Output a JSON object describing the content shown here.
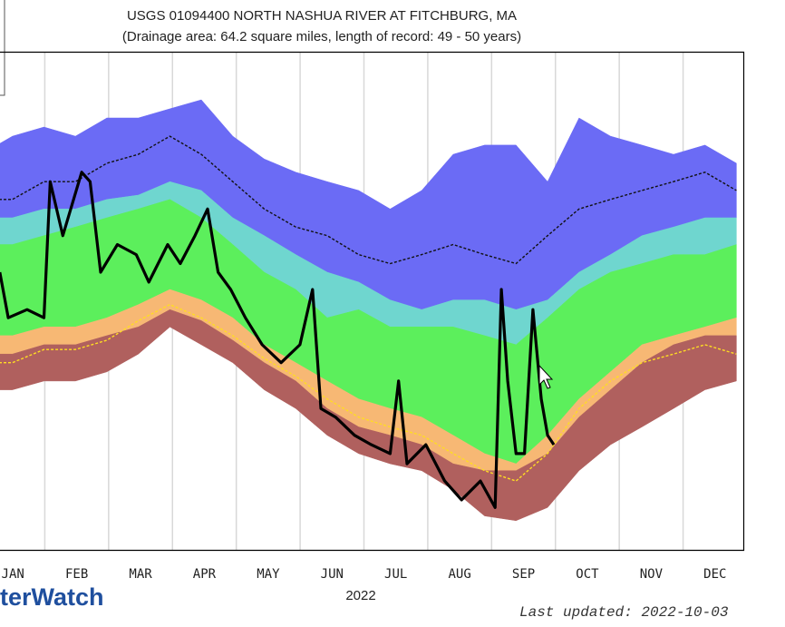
{
  "chart_data": {
    "type": "line",
    "title": "USGS 01094400 NORTH NASHUA RIVER AT FITCHBURG, MA",
    "subtitle": "(Drainage area: 64.2 square miles, length of record: 49 - 50 years)",
    "categories": [
      "JAN",
      "FEB",
      "MAR",
      "APR",
      "MAY",
      "JUN",
      "JUL",
      "AUG",
      "SEP",
      "OCT",
      "NOV",
      "DEC"
    ],
    "x_label": "2022",
    "logo": "terWatch",
    "updated": "Last updated: 2022-10-03",
    "xlim": [
      0,
      365
    ],
    "ylim": [
      1,
      1000
    ],
    "ylog": true,
    "grid": true,
    "x": [
      0,
      15,
      30,
      45,
      60,
      75,
      90,
      105,
      120,
      135,
      150,
      165,
      180,
      195,
      210,
      225,
      240,
      255,
      270,
      285,
      300,
      315,
      330,
      345,
      360
    ],
    "series": [
      {
        "fill": "#6b6bf5",
        "values": [
          241,
          310,
          352,
          310,
          399,
          399,
          453,
          513,
          310,
          226,
          188,
          165,
          146,
          113,
          146,
          241,
          274,
          274,
          165,
          399,
          310,
          274,
          241,
          274,
          213
        ]
      },
      {
        "fill": "#6fd6cf",
        "values": [
          100,
          100,
          113,
          113,
          129,
          137,
          165,
          146,
          100,
          78,
          60,
          47,
          41,
          32,
          28,
          32,
          32,
          28,
          32,
          47,
          60,
          78,
          88,
          100,
          100
        ]
      },
      {
        "fill": "#5cef5c",
        "values": [
          69,
          69,
          78,
          88,
          100,
          113,
          129,
          100,
          69,
          47,
          37,
          25,
          28,
          22,
          22,
          22,
          19.5,
          17.2,
          25,
          37,
          47,
          53,
          60,
          60,
          69
        ]
      },
      {
        "fill": "#f7b874",
        "values": [
          19.5,
          19.5,
          22,
          22,
          25,
          30,
          37,
          32,
          25,
          17.2,
          13.4,
          10.4,
          8.1,
          7.1,
          6.3,
          4.9,
          3.8,
          3.3,
          4.9,
          8.1,
          11.8,
          17.2,
          19.5,
          22,
          25
        ]
      },
      {
        "fill": "#b0605e",
        "values": [
          15.1,
          15.1,
          17.2,
          17.2,
          19.5,
          22,
          28,
          24,
          18.3,
          13.4,
          10.4,
          7.1,
          5.5,
          4.9,
          4.3,
          3.3,
          3.0,
          3.0,
          3.8,
          6.3,
          9.2,
          13.4,
          17.2,
          19.5,
          19.5
        ]
      },
      {
        "values": [
          9.2,
          9.2,
          10.4,
          10.4,
          11.8,
          15.1,
          22,
          17.2,
          13.4,
          9.2,
          7.1,
          4.9,
          3.8,
          3.3,
          3.0,
          2.3,
          1.6,
          1.5,
          1.8,
          3.0,
          4.3,
          5.5,
          7.1,
          9.2,
          10.4
        ]
      },
      {
        "color": "#111111",
        "dashed": true,
        "values": [
          129,
          129,
          165,
          165,
          213,
          241,
          310,
          241,
          165,
          113,
          88,
          78,
          60,
          53,
          60,
          69,
          60,
          53,
          78,
          113,
          129,
          146,
          165,
          188,
          146
        ]
      },
      {
        "color": "#ffdd22",
        "dashed": true,
        "values": [
          13.4,
          13.4,
          16.1,
          16.1,
          18.3,
          24,
          30,
          25,
          19.5,
          14.2,
          11.1,
          8.1,
          6.3,
          5.5,
          4.9,
          3.8,
          3.0,
          2.6,
          3.8,
          7.1,
          10.4,
          13.4,
          15.1,
          17.2,
          15.1
        ]
      },
      {
        "color": "#000000",
        "dashed": false,
        "x": [
          9,
          13,
          22,
          30,
          33,
          39,
          48,
          52,
          57,
          65,
          74,
          80,
          89,
          95,
          102,
          108,
          113,
          119,
          126,
          134,
          143,
          152,
          158,
          162,
          169,
          178,
          186,
          195,
          199,
          203,
          212,
          221,
          229,
          238,
          245,
          248,
          251,
          255,
          259,
          263,
          267,
          270,
          273
        ],
        "values": [
          47,
          25,
          28,
          25,
          165,
          78,
          188,
          165,
          47,
          69,
          60,
          41,
          69,
          53,
          78,
          113,
          47,
          37,
          25,
          17.2,
          13.4,
          17.2,
          37,
          7.1,
          6.3,
          4.9,
          4.3,
          3.8,
          10.4,
          3.3,
          4.3,
          2.6,
          2.0,
          2.6,
          1.8,
          37,
          10.4,
          3.8,
          3.8,
          28,
          8.1,
          4.9,
          4.3
        ]
      }
    ]
  }
}
